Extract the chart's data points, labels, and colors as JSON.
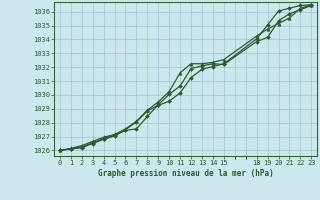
{
  "title": "Graphe pression niveau de la mer (hPa)",
  "background_color": "#cce8ee",
  "grid_color": "#99bbcc",
  "line_color": "#2d5a2d",
  "spine_color": "#336633",
  "xlim": [
    -0.5,
    23.5
  ],
  "ylim": [
    1025.6,
    1036.7
  ],
  "yticks": [
    1026,
    1027,
    1028,
    1029,
    1030,
    1031,
    1032,
    1033,
    1034,
    1035,
    1036
  ],
  "xticks": [
    0,
    1,
    2,
    3,
    4,
    5,
    6,
    7,
    8,
    9,
    10,
    11,
    12,
    13,
    14,
    15,
    18,
    19,
    20,
    21,
    22,
    23
  ],
  "xtick_labels": [
    "0",
    "1",
    "2",
    "3",
    "4",
    "5",
    "6",
    "7",
    "8",
    "9",
    "10",
    "11",
    "12",
    "13",
    "14",
    "15",
    "18",
    "19",
    "20",
    "21",
    "22",
    "23"
  ],
  "series1_x": [
    0,
    1,
    2,
    3,
    4,
    5,
    6,
    7,
    8,
    9,
    10,
    11,
    12,
    13,
    14,
    15,
    18,
    19,
    20,
    21,
    22,
    23
  ],
  "series1_y": [
    1026.0,
    1026.1,
    1026.25,
    1026.55,
    1026.85,
    1027.1,
    1027.45,
    1027.55,
    1028.45,
    1029.3,
    1030.05,
    1030.65,
    1031.9,
    1032.1,
    1032.25,
    1032.2,
    1033.85,
    1034.15,
    1035.35,
    1035.85,
    1036.15,
    1036.45
  ],
  "series2_x": [
    0,
    1,
    2,
    3,
    4,
    5,
    6,
    7,
    8,
    9,
    10,
    11,
    12,
    13,
    14,
    15,
    18,
    19,
    20,
    21,
    22,
    23
  ],
  "series2_y": [
    1026.0,
    1026.15,
    1026.35,
    1026.65,
    1026.95,
    1027.15,
    1027.55,
    1028.1,
    1028.9,
    1029.5,
    1030.25,
    1031.6,
    1032.25,
    1032.25,
    1032.35,
    1032.55,
    1034.25,
    1034.75,
    1035.15,
    1035.55,
    1036.25,
    1036.5
  ],
  "series3_x": [
    0,
    1,
    2,
    3,
    4,
    5,
    6,
    7,
    8,
    9,
    10,
    11,
    12,
    13,
    14,
    15,
    18,
    19,
    20,
    21,
    22,
    23
  ],
  "series3_y": [
    1026.0,
    1026.1,
    1026.2,
    1026.5,
    1026.8,
    1027.05,
    1027.5,
    1028.05,
    1028.85,
    1029.25,
    1029.55,
    1030.15,
    1031.25,
    1031.85,
    1032.05,
    1032.25,
    1034.05,
    1035.05,
    1036.05,
    1036.25,
    1036.45,
    1036.5
  ]
}
